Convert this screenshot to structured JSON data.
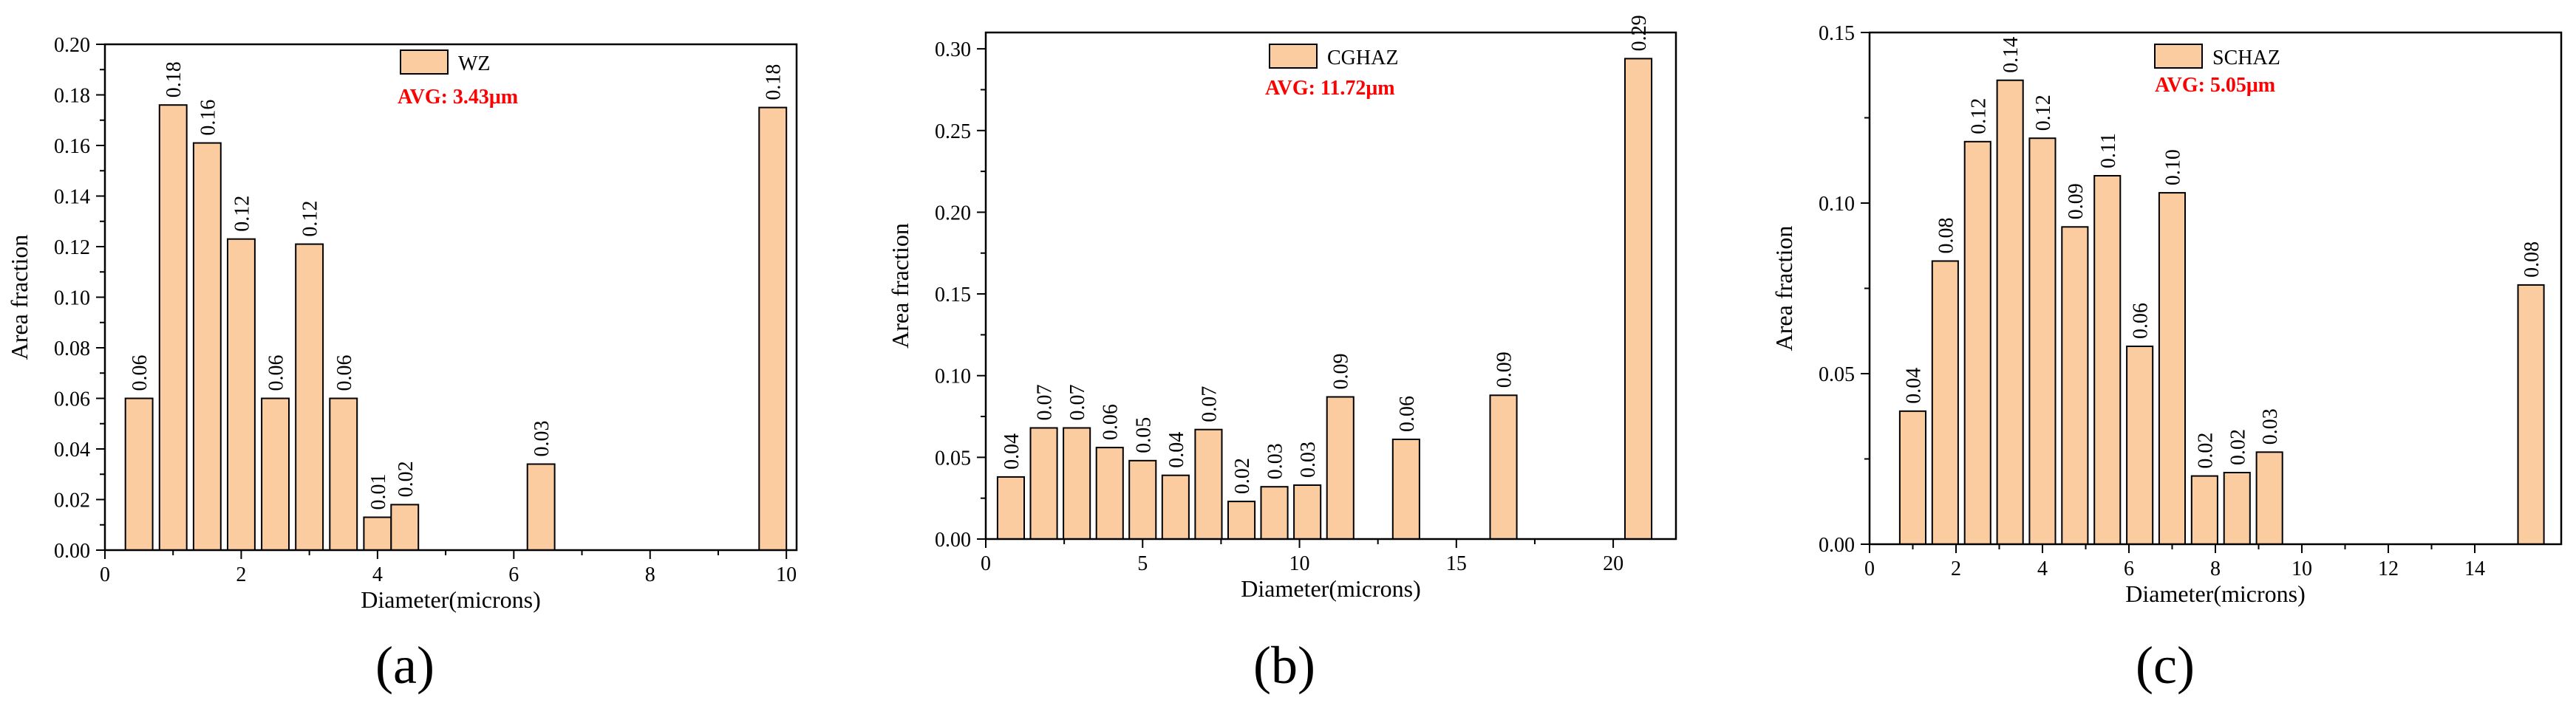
{
  "colors": {
    "bar_fill": "#FACCA0",
    "bar_stroke": "#000000",
    "avg_text": "#FF0000"
  },
  "chart_data": [
    {
      "type": "bar",
      "panel_label": "(a)",
      "legend": "WZ",
      "avg_label": "AVG: 3.43μm",
      "xlabel": "Diameter(microns)",
      "ylabel": "Area fraction",
      "xlim": [
        0,
        10.15
      ],
      "ylim": [
        0,
        0.2
      ],
      "xticks": [
        0,
        2,
        4,
        6,
        8,
        10
      ],
      "xtick_labels": [
        "0",
        "2",
        "4",
        "6",
        "8",
        "10"
      ],
      "yticks": [
        0,
        0.02,
        0.04,
        0.06,
        0.08,
        0.1,
        0.12,
        0.14,
        0.16,
        0.18,
        0.2
      ],
      "ytick_labels": [
        "0.00",
        "0.02",
        "0.04",
        "0.06",
        "0.08",
        "0.10",
        "0.12",
        "0.14",
        "0.16",
        "0.18",
        "0.20"
      ],
      "bar_width": 0.4,
      "x": [
        0.5,
        1.0,
        1.5,
        2.0,
        2.5,
        3.0,
        3.5,
        4.0,
        4.4,
        6.4,
        9.8
      ],
      "values": [
        0.06,
        0.176,
        0.161,
        0.123,
        0.06,
        0.121,
        0.06,
        0.013,
        0.018,
        0.034,
        0.175
      ],
      "labels": [
        "0.06",
        "0.18",
        "0.16",
        "0.12",
        "0.06",
        "0.12",
        "0.06",
        "0.01",
        "0.02",
        "0.03",
        "0.18"
      ]
    },
    {
      "type": "bar",
      "panel_label": "(b)",
      "legend": "CGHAZ",
      "avg_label": "AVG:  11.72μm",
      "xlabel": "Diameter(microns)",
      "ylabel": "Area fraction",
      "xlim": [
        0,
        22
      ],
      "ylim": [
        0,
        0.31
      ],
      "xticks": [
        0,
        5,
        10,
        15,
        20
      ],
      "xtick_labels": [
        "0",
        "5",
        "10",
        "15",
        "20"
      ],
      "yticks": [
        0,
        0.05,
        0.1,
        0.15,
        0.2,
        0.25,
        0.3
      ],
      "ytick_labels": [
        "0.00",
        "0.05",
        "0.10",
        "0.15",
        "0.20",
        "0.25",
        "0.30"
      ],
      "bar_width": 0.85,
      "x": [
        0.8,
        1.85,
        2.9,
        3.95,
        5.0,
        6.05,
        7.1,
        8.15,
        9.2,
        10.25,
        11.3,
        13.4,
        16.5,
        20.8
      ],
      "values": [
        0.038,
        0.068,
        0.068,
        0.056,
        0.048,
        0.039,
        0.067,
        0.023,
        0.032,
        0.033,
        0.087,
        0.061,
        0.088,
        0.294
      ],
      "labels": [
        "0.04",
        "0.07",
        "0.07",
        "0.06",
        "0.05",
        "0.04",
        "0.07",
        "0.02",
        "0.03",
        "0.03",
        "0.09",
        "0.06",
        "0.09",
        "0.29"
      ]
    },
    {
      "type": "bar",
      "panel_label": "(c)",
      "legend": "SCHAZ",
      "avg_label": "AVG: 5.05μm",
      "xlabel": "Diameter(microns)",
      "ylabel": "Area fraction",
      "xlim": [
        0,
        16
      ],
      "ylim": [
        0,
        0.15
      ],
      "xticks": [
        0,
        2,
        4,
        6,
        8,
        10,
        12,
        14
      ],
      "xtick_labels": [
        "0",
        "2",
        "4",
        "6",
        "8",
        "10",
        "12",
        "14"
      ],
      "yticks": [
        0,
        0.05,
        0.1,
        0.15
      ],
      "ytick_labels": [
        "0.00",
        "0.05",
        "0.10",
        "0.15"
      ],
      "bar_width": 0.6,
      "x": [
        1.0,
        1.75,
        2.5,
        3.25,
        4.0,
        4.75,
        5.5,
        6.25,
        7.0,
        7.75,
        8.5,
        9.25,
        15.3
      ],
      "values": [
        0.039,
        0.083,
        0.118,
        0.136,
        0.119,
        0.093,
        0.108,
        0.058,
        0.103,
        0.02,
        0.021,
        0.027,
        0.076
      ],
      "labels": [
        "0.04",
        "0.08",
        "0.12",
        "0.14",
        "0.12",
        "0.09",
        "0.11",
        "0.06",
        "0.10",
        "0.02",
        "0.02",
        "0.03",
        "0.08"
      ]
    }
  ]
}
